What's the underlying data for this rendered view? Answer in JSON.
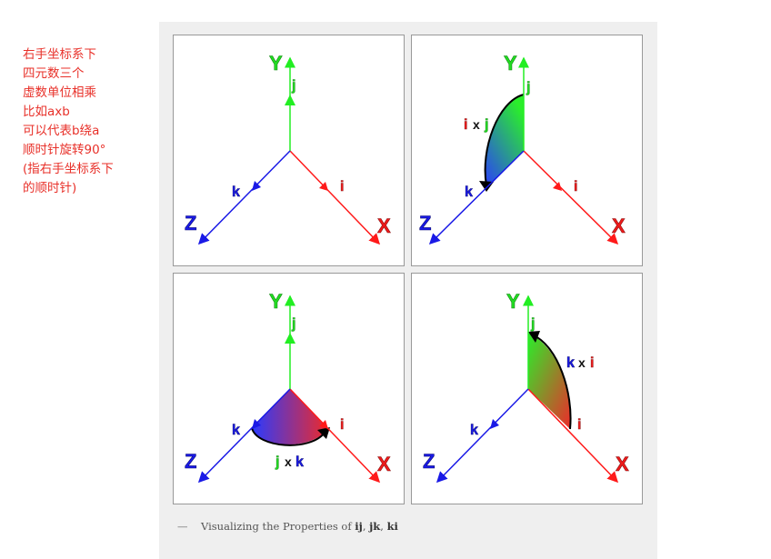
{
  "note": {
    "lines": [
      "右手坐标系下",
      "四元数三个",
      "虚数单位相乘",
      "比如axb",
      "可以代表b绕a",
      "顺时针旋转90°",
      "(指右手坐标系下",
      "的顺时针)"
    ],
    "color": "#e8312a"
  },
  "axes": {
    "x": "X",
    "y": "Y",
    "z": "Z"
  },
  "units": {
    "i": "i",
    "j": "j",
    "k": "k"
  },
  "panels": [
    {
      "id": "basis"
    },
    {
      "id": "ij",
      "left": "i",
      "op": "x",
      "right": "j"
    },
    {
      "id": "jk",
      "left": "j",
      "op": "x",
      "right": "k"
    },
    {
      "id": "ki",
      "left": "k",
      "op": "x",
      "right": "i"
    }
  ],
  "caption": {
    "dash": "—",
    "text": "Visualizing the Properties of ",
    "ij": "ij",
    "sep1": ", ",
    "jk": "jk",
    "sep2": ", ",
    "ki": "ki"
  },
  "colors": {
    "x": "#ff1a1a",
    "y": "#22ee22",
    "z": "#1a1ae6",
    "frame": "#efefef"
  }
}
